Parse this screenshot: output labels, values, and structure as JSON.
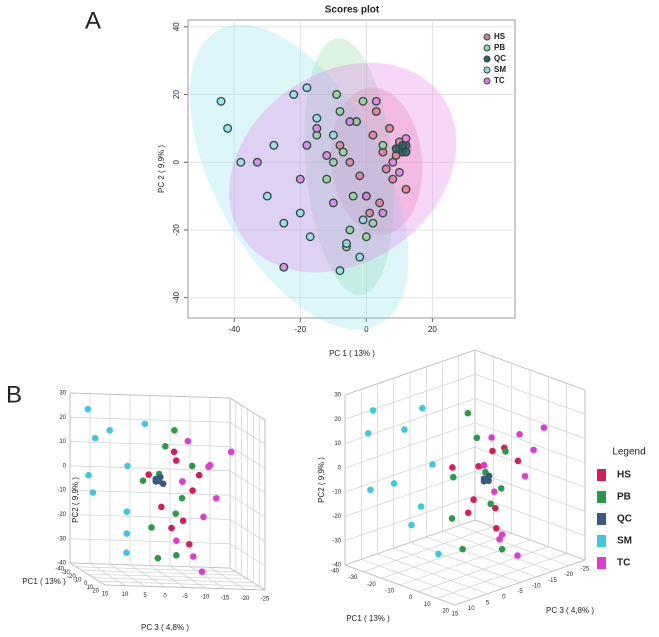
{
  "panel_labels": [
    "A",
    "B"
  ],
  "chart_data": [
    {
      "type": "scatter",
      "title": "Scores plot",
      "xlabel": "PC 1 ( 13% )",
      "ylabel": "PC 2 ( 9,9% )",
      "xlim": [
        -54,
        45
      ],
      "ylim": [
        -46,
        42
      ],
      "xticks": [
        -40,
        -20,
        0,
        20
      ],
      "yticks": [
        -40,
        -20,
        0,
        20,
        40
      ],
      "grid": true,
      "series": [
        {
          "name": "HS",
          "color": "#e8769a",
          "x": [
            2,
            5,
            8,
            -3,
            0,
            10,
            6,
            -5,
            3,
            12,
            -8,
            1,
            7,
            4,
            -2,
            9
          ],
          "values": [
            8,
            3,
            -5,
            12,
            -10,
            6,
            -2,
            0,
            15,
            -8,
            5,
            -15,
            10,
            -12,
            -4,
            2
          ]
        },
        {
          "name": "PB",
          "color": "#8fd69a",
          "x": [
            -8,
            -15,
            -5,
            0,
            -10,
            -3,
            5,
            -12,
            -6,
            2,
            -9,
            -4,
            -1,
            -7
          ],
          "values": [
            15,
            8,
            -20,
            -22,
            0,
            12,
            5,
            -5,
            -25,
            -18,
            20,
            -10,
            18,
            3
          ]
        },
        {
          "name": "QC",
          "color": "#2f5e6a",
          "x": [
            10,
            11,
            12,
            9,
            11,
            12
          ],
          "values": [
            4,
            3,
            5,
            4,
            5,
            3
          ]
        },
        {
          "name": "SM",
          "color": "#8ee0ee",
          "x": [
            -44,
            -42,
            -38,
            -30,
            -22,
            -25,
            -18,
            -17,
            -10,
            -8,
            -2,
            -6,
            -1,
            -15,
            -28,
            -20
          ],
          "values": [
            18,
            10,
            0,
            -10,
            20,
            -18,
            22,
            -22,
            8,
            -32,
            -28,
            -24,
            -17,
            13,
            5,
            -15
          ]
        },
        {
          "name": "TC",
          "color": "#e47ae8",
          "x": [
            -25,
            -33,
            -20,
            -15,
            0,
            10,
            12,
            5,
            -10,
            -5,
            -18,
            3,
            8,
            -12
          ],
          "values": [
            -31,
            0,
            -5,
            10,
            -10,
            -3,
            7,
            -15,
            -12,
            12,
            5,
            18,
            0,
            2
          ]
        }
      ]
    },
    {
      "type": "scatter3d",
      "xlabel": "PC 3 ( 4,8% )",
      "ylabel": "PC2 ( 9,9% )",
      "zlabel": "PC1 ( 13% )",
      "xlim": [
        15,
        -25
      ],
      "ylim": [
        -40,
        30
      ],
      "zlim": [
        20,
        -40
      ],
      "xticks": [
        15,
        10,
        5,
        0,
        -5,
        -10,
        -15,
        -20,
        -25
      ],
      "yticks": [
        30,
        20,
        10,
        0,
        -10,
        -20,
        -30,
        -40
      ],
      "zticks": [
        20,
        10,
        0,
        -10,
        -20,
        -30,
        -40
      ],
      "series": [
        {
          "color": "#d81b5a",
          "x": [
            -5,
            -8,
            -2,
            -10,
            -6,
            -3,
            -12,
            -7,
            0,
            -9
          ],
          "values": [
            10,
            0,
            -10,
            5,
            -20,
            15,
            -5,
            -15,
            2,
            -25
          ],
          "z": [
            5,
            -5,
            0,
            10,
            -10,
            15,
            -15,
            3,
            -8,
            0
          ]
        },
        {
          "color": "#2a9a48",
          "x": [
            -3,
            -6,
            -1,
            -9,
            -4,
            2,
            -7,
            -5,
            0,
            -2
          ],
          "values": [
            15,
            -5,
            -20,
            8,
            -28,
            0,
            20,
            -12,
            5,
            -32
          ],
          "z": [
            0,
            8,
            -10,
            5,
            12,
            -4,
            -12,
            4,
            10,
            -6
          ]
        },
        {
          "color": "#3a5a86",
          "x": [
            0,
            1,
            -1,
            0,
            1
          ],
          "values": [
            2,
            3,
            1,
            4,
            2
          ],
          "z": [
            10,
            11,
            10,
            12,
            11
          ]
        },
        {
          "color": "#3cc8e0",
          "x": [
            8,
            12,
            5,
            10,
            3,
            14,
            6,
            -2,
            9,
            4
          ],
          "values": [
            18,
            25,
            5,
            -10,
            -25,
            0,
            -30,
            20,
            12,
            -15
          ],
          "z": [
            -20,
            -30,
            -10,
            -35,
            -25,
            -15,
            -5,
            -28,
            -38,
            -18
          ]
        },
        {
          "color": "#e03ad6",
          "x": [
            -12,
            -15,
            -8,
            -18,
            -10,
            -14,
            -6,
            -16,
            -11,
            -4
          ],
          "values": [
            10,
            -5,
            0,
            15,
            -30,
            -15,
            20,
            5,
            -35,
            -22
          ],
          "z": [
            15,
            5,
            -5,
            10,
            0,
            -10,
            18,
            -15,
            8,
            12
          ]
        }
      ]
    },
    {
      "type": "scatter3d",
      "xlabel": "PC 3 ( 4,8% )",
      "ylabel": "PC2 ( 9,9% )",
      "zlabel": "PC1 ( 13% )",
      "legend_title": "Legend",
      "xlim": [
        15,
        -25
      ],
      "ylim": [
        -40,
        30
      ],
      "zlim": [
        20,
        -40
      ],
      "xticks": [
        15,
        10,
        5,
        0,
        -5,
        -10,
        -15,
        -20,
        -25
      ],
      "yticks": [
        30,
        20,
        10,
        0,
        -10,
        -20,
        -30,
        -40
      ],
      "zticks": [
        20,
        10,
        0,
        -10,
        -20,
        -30,
        -40
      ],
      "series": [
        {
          "name": "HS",
          "color": "#d81b5a",
          "x": [
            -5,
            -8,
            -2,
            -10,
            -6,
            -3,
            -12,
            -7,
            0,
            -9
          ],
          "values": [
            10,
            0,
            -10,
            5,
            -20,
            15,
            -5,
            -15,
            2,
            -25
          ],
          "z": [
            5,
            -5,
            0,
            10,
            -10,
            15,
            -15,
            3,
            -8,
            0
          ]
        },
        {
          "name": "PB",
          "color": "#2a9a48",
          "x": [
            -3,
            -6,
            -1,
            -9,
            -4,
            2,
            -7,
            -5,
            0,
            -2
          ],
          "values": [
            15,
            -5,
            -20,
            8,
            -28,
            0,
            20,
            -12,
            5,
            -32
          ],
          "z": [
            0,
            8,
            -10,
            5,
            12,
            -4,
            -12,
            4,
            10,
            -6
          ]
        },
        {
          "name": "QC",
          "color": "#3a5a86",
          "x": [
            0,
            1,
            -1,
            0,
            1
          ],
          "values": [
            2,
            3,
            1,
            4,
            2
          ],
          "z": [
            10,
            11,
            10,
            12,
            11
          ]
        },
        {
          "name": "SM",
          "color": "#3cc8e0",
          "x": [
            8,
            12,
            5,
            10,
            3,
            14,
            6,
            -2,
            9,
            4
          ],
          "values": [
            18,
            25,
            5,
            -10,
            -25,
            0,
            -30,
            20,
            12,
            -15
          ],
          "z": [
            -20,
            -30,
            -10,
            -35,
            -25,
            -15,
            -5,
            -28,
            -38,
            -18
          ]
        },
        {
          "name": "TC",
          "color": "#e03ad6",
          "x": [
            -12,
            -15,
            -8,
            -18,
            -10,
            -14,
            -6,
            -16,
            -11,
            -4
          ],
          "values": [
            10,
            -5,
            0,
            15,
            -30,
            -15,
            20,
            5,
            -35,
            -22
          ],
          "z": [
            15,
            5,
            -5,
            10,
            0,
            -10,
            18,
            -15,
            8,
            12
          ]
        }
      ]
    }
  ]
}
